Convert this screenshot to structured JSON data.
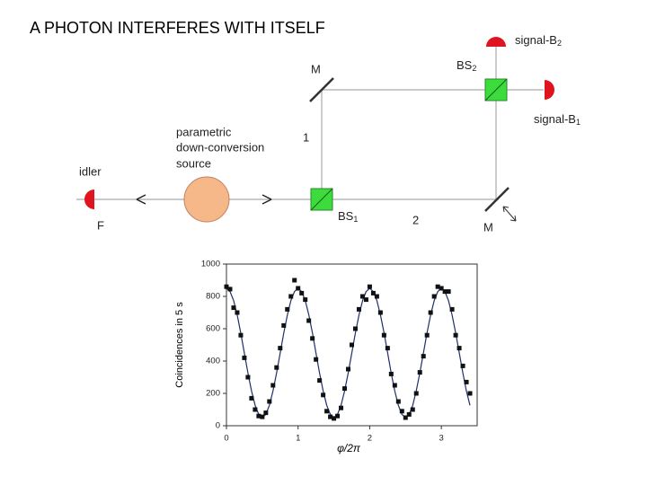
{
  "title": "A PHOTON INTERFERES WITH ITSELF",
  "diagram": {
    "mirror_top": "M",
    "mirror_bottom": "M",
    "bs1": {
      "text": "BS",
      "sub": "1"
    },
    "bs2": {
      "text": "BS",
      "sub": "2"
    },
    "signal_b2": {
      "text": "signal-B",
      "sub": "2"
    },
    "signal_b1": {
      "text": "signal-B",
      "sub": "1"
    },
    "path1": "1",
    "path2": "2",
    "source": [
      "parametric",
      "down-conversion",
      "source"
    ],
    "idler": "idler",
    "filter": "F"
  },
  "chart_data": {
    "type": "scatter",
    "xlabel": "φ/2π",
    "ylabel": "Coincidences in 5 s",
    "xlim": [
      0,
      3.5
    ],
    "ylim": [
      0,
      1000
    ],
    "xticks": [
      0,
      1,
      2,
      3
    ],
    "yticks": [
      0,
      200,
      400,
      600,
      800,
      1000
    ],
    "x": [
      0,
      0.05,
      0.1,
      0.15,
      0.2,
      0.25,
      0.3,
      0.35,
      0.4,
      0.45,
      0.5,
      0.55,
      0.6,
      0.65,
      0.7,
      0.75,
      0.8,
      0.85,
      0.9,
      0.95,
      1,
      1.05,
      1.1,
      1.15,
      1.2,
      1.25,
      1.3,
      1.35,
      1.4,
      1.45,
      1.5,
      1.55,
      1.6,
      1.65,
      1.7,
      1.75,
      1.8,
      1.85,
      1.9,
      1.95,
      2,
      2.05,
      2.1,
      2.15,
      2.2,
      2.25,
      2.3,
      2.35,
      2.4,
      2.45,
      2.5,
      2.55,
      2.6,
      2.65,
      2.7,
      2.75,
      2.8,
      2.85,
      2.9,
      2.95,
      3,
      3.05,
      3.1,
      3.15,
      3.2,
      3.25,
      3.3,
      3.35,
      3.4
    ],
    "series": [
      {
        "color": "#111111",
        "values": [
          860,
          845,
          730,
          700,
          560,
          420,
          300,
          170,
          100,
          60,
          55,
          80,
          150,
          250,
          360,
          480,
          620,
          720,
          800,
          900,
          850,
          820,
          780,
          650,
          540,
          410,
          280,
          190,
          90,
          55,
          45,
          60,
          110,
          230,
          350,
          500,
          600,
          720,
          800,
          780,
          860,
          820,
          800,
          700,
          560,
          480,
          320,
          250,
          150,
          90,
          50,
          70,
          100,
          200,
          330,
          430,
          560,
          700,
          800,
          860,
          850,
          830,
          830,
          720,
          560,
          480,
          370,
          270,
          200
        ]
      },
      {
        "color": "#1f2f6e",
        "values": [
          850,
          830,
          774,
          685,
          574,
          450,
          326,
          215,
          126,
          70,
          50,
          70,
          126,
          215,
          326,
          450,
          574,
          685,
          774,
          830,
          850,
          830,
          774,
          685,
          574,
          450,
          326,
          215,
          126,
          70,
          50,
          70,
          126,
          215,
          326,
          450,
          574,
          685,
          774,
          830,
          850,
          830,
          774,
          685,
          574,
          450,
          326,
          215,
          126,
          70,
          50,
          70,
          126,
          215,
          326,
          450,
          574,
          685,
          774,
          830,
          850,
          830,
          774,
          685,
          574,
          450,
          326,
          215,
          126
        ]
      }
    ]
  }
}
